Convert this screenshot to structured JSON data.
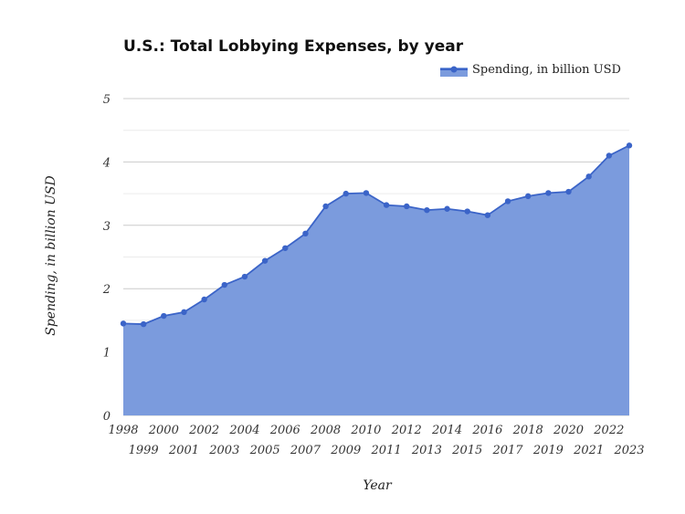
{
  "chart_data": {
    "type": "area",
    "title": "U.S.: Total Lobbying Expenses, by year",
    "xlabel": "Year",
    "ylabel": "Spending, in billion USD",
    "ylim": [
      0,
      5
    ],
    "yticks": [
      0,
      1,
      2,
      3,
      4,
      5
    ],
    "grid": true,
    "legend_placement": "top-right",
    "colors": {
      "line": "#3b64c8",
      "fill": "#7b9bdd",
      "grid": "#cccccc"
    },
    "series": [
      {
        "name": "Spending, in billion USD",
        "x": [
          1998,
          1999,
          2000,
          2001,
          2002,
          2003,
          2004,
          2005,
          2006,
          2007,
          2008,
          2009,
          2010,
          2011,
          2012,
          2013,
          2014,
          2015,
          2016,
          2017,
          2018,
          2019,
          2020,
          2021,
          2022,
          2023
        ],
        "values": [
          1.45,
          1.44,
          1.57,
          1.63,
          1.83,
          2.06,
          2.19,
          2.44,
          2.64,
          2.87,
          3.3,
          3.5,
          3.51,
          3.32,
          3.3,
          3.24,
          3.26,
          3.22,
          3.16,
          3.38,
          3.46,
          3.51,
          3.53,
          3.77,
          4.1,
          4.26
        ]
      }
    ]
  }
}
